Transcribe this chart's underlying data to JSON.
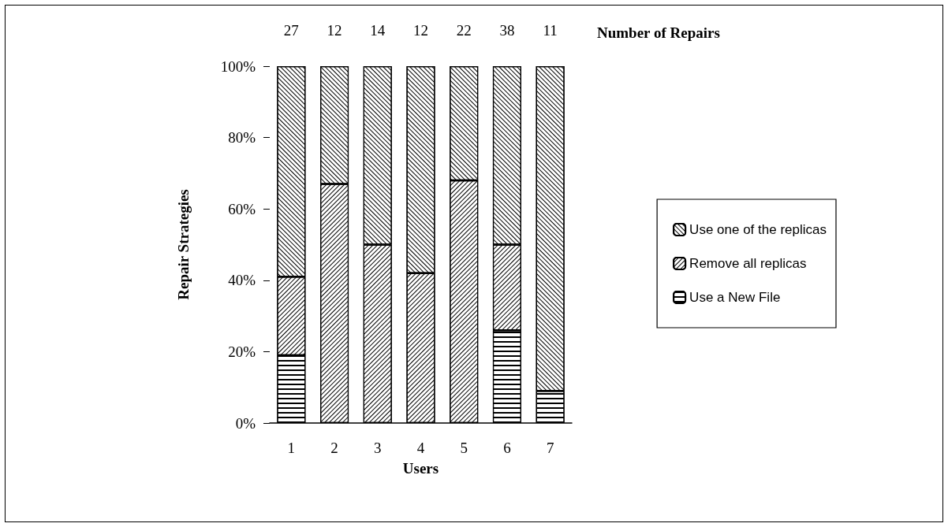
{
  "chart_data": {
    "type": "bar",
    "stacked": true,
    "xlabel": "Users",
    "ylabel": "Repair Strategies",
    "categories": [
      "1",
      "2",
      "3",
      "4",
      "5",
      "6",
      "7"
    ],
    "series": [
      {
        "name": "Use a New File",
        "color": "#ffffff",
        "values": [
          19,
          0,
          0,
          0,
          0,
          26,
          9
        ]
      },
      {
        "name": "Remove all replicas",
        "color": "#ffffff",
        "values": [
          22,
          67,
          50,
          42,
          68,
          24,
          0
        ]
      },
      {
        "name": "Use one of the replicas",
        "color": "#ffffff",
        "values": [
          59,
          33,
          50,
          58,
          32,
          50,
          91
        ]
      }
    ],
    "ylim": [
      0,
      100
    ],
    "yticks": [
      {
        "value": 0,
        "label": "0%"
      },
      {
        "value": 20,
        "label": "20%"
      },
      {
        "value": 40,
        "label": "40%"
      },
      {
        "value": 60,
        "label": "60%"
      },
      {
        "value": 80,
        "label": "80%"
      },
      {
        "value": 100,
        "label": "100%"
      }
    ],
    "annotations": [
      {
        "text": "27",
        "x": "1",
        "y": 100
      },
      {
        "text": "12",
        "x": "2",
        "y": 100
      },
      {
        "text": "14",
        "x": "3",
        "y": 100
      },
      {
        "text": "12",
        "x": "4",
        "y": 100
      },
      {
        "text": "22",
        "x": "5",
        "y": 100
      },
      {
        "text": "38",
        "x": "6",
        "y": 100
      },
      {
        "text": "11",
        "x": "7",
        "y": 100
      },
      "Number of Repairs"
    ],
    "legend": "right",
    "grid": false
  }
}
